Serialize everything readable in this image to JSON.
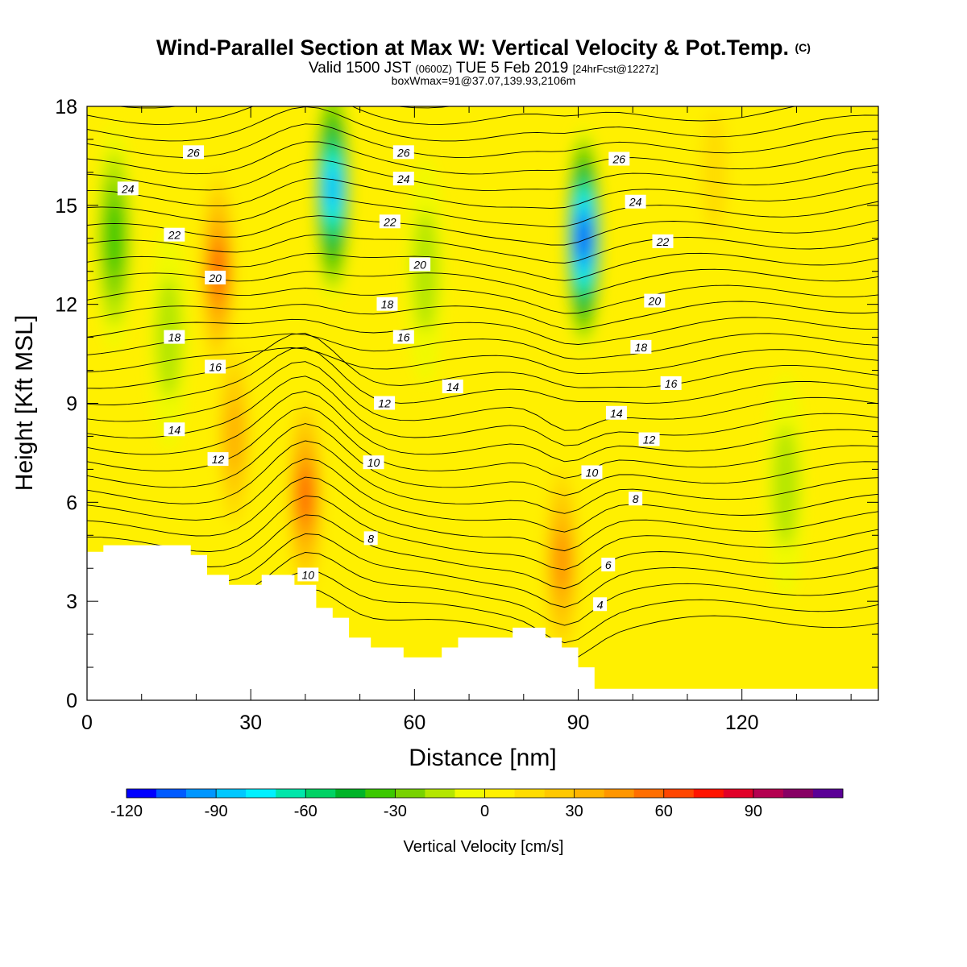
{
  "title": {
    "main": "Wind-Parallel Section at Max W: Vertical Velocity & Pot.Temp.",
    "copyright": "(C)",
    "valid_prefix": "Valid 1500 JST",
    "valid_z": "(0600Z)",
    "valid_date": "TUE 5 Feb 2019",
    "forecast": "[24hrFcst@1227z]",
    "boxinfo": "boxWmax=91@37.07,139.93,2106m"
  },
  "chart_data": {
    "type": "heatmap",
    "xlabel": "Distance [nm]",
    "ylabel": "Height [Kft MSL]",
    "xlim": [
      0,
      145
    ],
    "ylim": [
      0,
      18
    ],
    "x_ticks": [
      0,
      30,
      60,
      90,
      120
    ],
    "y_ticks": [
      0,
      3,
      6,
      9,
      12,
      15,
      18
    ],
    "colorbar": {
      "label": "Vertical Velocity [cm/s]",
      "min": -120,
      "max": 110,
      "step": 10,
      "tick_values": [
        -120,
        -90,
        -60,
        -30,
        0,
        30,
        60,
        90
      ],
      "tick_labels": [
        "-120",
        "-90",
        "-60",
        "-30",
        "0",
        "30",
        "60",
        "90"
      ],
      "colors": [
        "#0000ff",
        "#005aff",
        "#0096ff",
        "#00c8ff",
        "#00f0ff",
        "#00e6aa",
        "#00d264",
        "#00b428",
        "#3cc800",
        "#78d200",
        "#b4e600",
        "#f0fa00",
        "#fff000",
        "#ffdc00",
        "#ffc800",
        "#ffb400",
        "#ff9600",
        "#ff6e00",
        "#ff4600",
        "#ff1400",
        "#e10028",
        "#b40050",
        "#870064",
        "#5a0096"
      ]
    },
    "vertical_velocity_cores": [
      {
        "x": 5,
        "y": 14,
        "value": -40
      },
      {
        "x": 15,
        "y": 11,
        "value": -20
      },
      {
        "x": 24,
        "y": 13,
        "value": 55
      },
      {
        "x": 27,
        "y": 8,
        "value": 40
      },
      {
        "x": 40,
        "y": 6.2,
        "value": 60
      },
      {
        "x": 45,
        "y": 15.5,
        "value": -90
      },
      {
        "x": 62,
        "y": 13,
        "value": -20
      },
      {
        "x": 87,
        "y": 4.2,
        "value": 50
      },
      {
        "x": 91,
        "y": 14,
        "value": -110
      },
      {
        "x": 128,
        "y": 6.5,
        "value": -20
      },
      {
        "x": 115,
        "y": 16,
        "value": 20
      }
    ],
    "terrain": [
      [
        0,
        4.5
      ],
      [
        3,
        4.5
      ],
      [
        3,
        4.7
      ],
      [
        19,
        4.7
      ],
      [
        19,
        4.4
      ],
      [
        22,
        4.4
      ],
      [
        22,
        3.8
      ],
      [
        26,
        3.8
      ],
      [
        26,
        3.5
      ],
      [
        32,
        3.5
      ],
      [
        32,
        3.8
      ],
      [
        38,
        3.8
      ],
      [
        38,
        3.5
      ],
      [
        42,
        3.5
      ],
      [
        42,
        2.8
      ],
      [
        45,
        2.8
      ],
      [
        45,
        2.5
      ],
      [
        48,
        2.5
      ],
      [
        48,
        1.9
      ],
      [
        52,
        1.9
      ],
      [
        52,
        1.6
      ],
      [
        58,
        1.6
      ],
      [
        58,
        1.3
      ],
      [
        65,
        1.3
      ],
      [
        65,
        1.6
      ],
      [
        68,
        1.6
      ],
      [
        68,
        1.9
      ],
      [
        78,
        1.9
      ],
      [
        78,
        2.2
      ],
      [
        84,
        2.2
      ],
      [
        84,
        1.9
      ],
      [
        87,
        1.9
      ],
      [
        87,
        1.6
      ],
      [
        90,
        1.6
      ],
      [
        90,
        1.0
      ],
      [
        93,
        1.0
      ],
      [
        93,
        0.35
      ],
      [
        145,
        0.35
      ]
    ],
    "theta_labels": [
      {
        "text": "26",
        "x": 19.5,
        "y": 16.6
      },
      {
        "text": "24",
        "x": 7.5,
        "y": 15.5
      },
      {
        "text": "22",
        "x": 16,
        "y": 14.1
      },
      {
        "text": "20",
        "x": 23.5,
        "y": 12.8
      },
      {
        "text": "18",
        "x": 16,
        "y": 11.0
      },
      {
        "text": "16",
        "x": 23.5,
        "y": 10.1
      },
      {
        "text": "14",
        "x": 16,
        "y": 8.2
      },
      {
        "text": "12",
        "x": 24,
        "y": 7.3
      },
      {
        "text": "10",
        "x": 40.5,
        "y": 3.8
      },
      {
        "text": "8",
        "x": 52,
        "y": 4.9
      },
      {
        "text": "10",
        "x": 52.5,
        "y": 7.2
      },
      {
        "text": "12",
        "x": 54.5,
        "y": 9.0
      },
      {
        "text": "14",
        "x": 67,
        "y": 9.5
      },
      {
        "text": "16",
        "x": 58,
        "y": 11.0
      },
      {
        "text": "18",
        "x": 55,
        "y": 12.0
      },
      {
        "text": "20",
        "x": 61,
        "y": 13.2
      },
      {
        "text": "22",
        "x": 55.5,
        "y": 14.5
      },
      {
        "text": "24",
        "x": 58,
        "y": 15.8
      },
      {
        "text": "26",
        "x": 58,
        "y": 16.6
      },
      {
        "text": "26",
        "x": 97.5,
        "y": 16.4
      },
      {
        "text": "24",
        "x": 100.5,
        "y": 15.1
      },
      {
        "text": "22",
        "x": 105.5,
        "y": 13.9
      },
      {
        "text": "20",
        "x": 104,
        "y": 12.1
      },
      {
        "text": "18",
        "x": 101.5,
        "y": 10.7
      },
      {
        "text": "16",
        "x": 107,
        "y": 9.6
      },
      {
        "text": "14",
        "x": 97,
        "y": 8.7
      },
      {
        "text": "12",
        "x": 103,
        "y": 7.9
      },
      {
        "text": "10",
        "x": 92.5,
        "y": 6.9
      },
      {
        "text": "8",
        "x": 100.5,
        "y": 6.1
      },
      {
        "text": "6",
        "x": 95.5,
        "y": 4.1
      },
      {
        "text": "4",
        "x": 94,
        "y": 2.9
      }
    ]
  }
}
